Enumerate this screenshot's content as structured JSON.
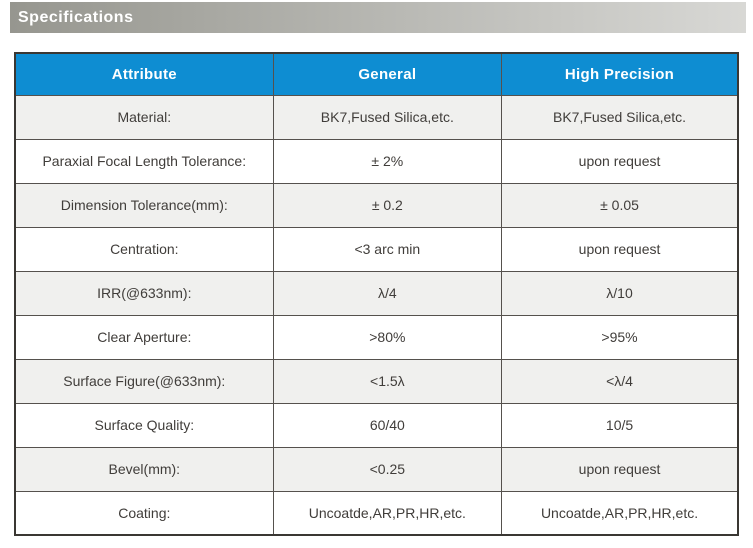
{
  "section": {
    "title": "Specifications"
  },
  "table": {
    "headers": [
      "Attribute",
      "General",
      "High Precision"
    ],
    "rows": [
      [
        "Material:",
        "BK7,Fused Silica,etc.",
        "BK7,Fused Silica,etc."
      ],
      [
        "Paraxial Focal Length Tolerance:",
        "± 2%",
        "upon request"
      ],
      [
        "Dimension Tolerance(mm):",
        "± 0.2",
        "± 0.05"
      ],
      [
        "Centration:",
        "<3 arc min",
        "upon request"
      ],
      [
        "IRR(@633nm):",
        "λ/4",
        "λ/10"
      ],
      [
        "Clear Aperture:",
        ">80%",
        ">95%"
      ],
      [
        "Surface Figure(@633nm):",
        "<1.5λ",
        "<λ/4"
      ],
      [
        "Surface Quality:",
        "60/40",
        "10/5"
      ],
      [
        "Bevel(mm):",
        "<0.25",
        "upon request"
      ],
      [
        "Coating:",
        "Uncoatde,AR,PR,HR,etc.",
        "Uncoatde,AR,PR,HR,etc."
      ]
    ],
    "colors": {
      "header_bg": "#0e8dd2",
      "header_text": "#ffffff",
      "row_alt_bg": "#f0f0ee",
      "row_bg": "#ffffff",
      "border": "#3a3733",
      "section_bar_gradient_start": "#96968f",
      "section_bar_gradient_end": "#d8d8d5"
    }
  }
}
